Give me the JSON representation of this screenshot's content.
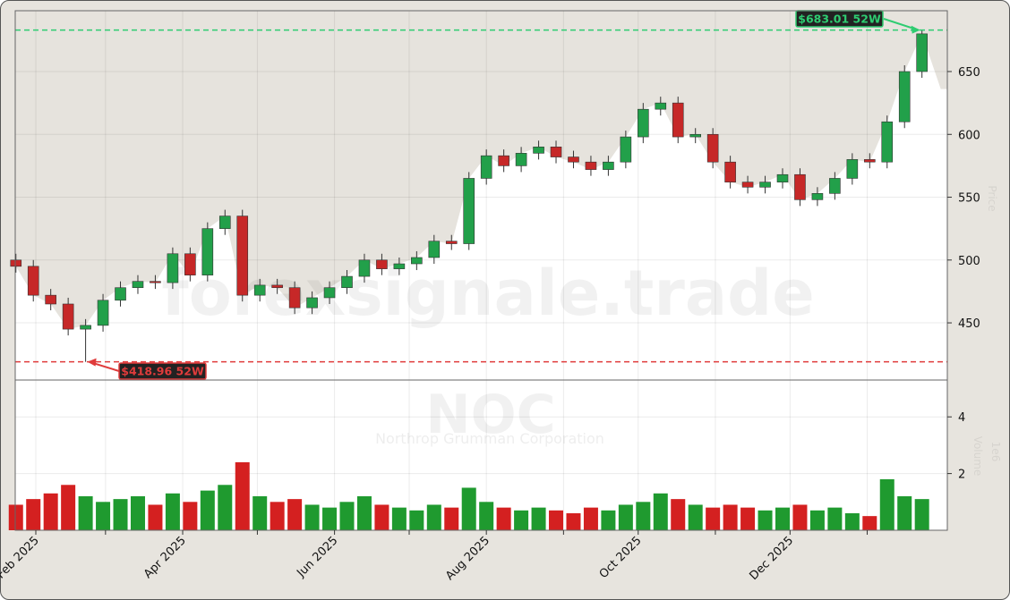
{
  "chart_data": {
    "type": "candlestick",
    "ticker": "NOC",
    "company": "Northrop Grumman Corporation",
    "watermark": "forexsignale.trade",
    "price_axis_label": "Price",
    "volume_axis_label": "Volume",
    "volume_unit": "1e6",
    "price_ylim": [
      404.5,
      698.4
    ],
    "volume_ylim": [
      0,
      5.3
    ],
    "price_ticks": [
      450,
      500,
      550,
      600,
      650
    ],
    "volume_ticks": [
      2,
      4
    ],
    "x_ticks": [
      {
        "date": "2025-02-01",
        "label": "Feb 2025"
      },
      {
        "date": "2025-03-01",
        "label": ""
      },
      {
        "date": "2025-04-01",
        "label": "Apr 2025"
      },
      {
        "date": "2025-05-01",
        "label": ""
      },
      {
        "date": "2025-06-01",
        "label": "Jun 2025"
      },
      {
        "date": "2025-07-01",
        "label": ""
      },
      {
        "date": "2025-08-01",
        "label": "Aug 2025"
      },
      {
        "date": "2025-09-01",
        "label": ""
      },
      {
        "date": "2025-10-01",
        "label": "Oct 2025"
      },
      {
        "date": "2025-11-01",
        "label": ""
      },
      {
        "date": "2025-12-01",
        "label": "Dec 2025"
      },
      {
        "date": "2026-01-01",
        "label": ""
      }
    ],
    "grid": true,
    "high_52w": {
      "value": 683.01,
      "label": "$683.01 52W",
      "color": "#2ecc71"
    },
    "low_52w": {
      "value": 418.96,
      "label": "$418.96 52W",
      "color": "#e03b3b"
    },
    "colors": {
      "up": "#22a04a",
      "down": "#c62828",
      "vol_up": "#1f9a2f",
      "vol_down": "#d42020",
      "background": "#e6e3dd"
    },
    "dates": [
      "2025-01-24",
      "2025-01-31",
      "2025-02-07",
      "2025-02-14",
      "2025-02-21",
      "2025-02-28",
      "2025-03-07",
      "2025-03-14",
      "2025-03-21",
      "2025-03-28",
      "2025-04-04",
      "2025-04-11",
      "2025-04-18",
      "2025-04-25",
      "2025-05-02",
      "2025-05-09",
      "2025-05-16",
      "2025-05-23",
      "2025-05-30",
      "2025-06-06",
      "2025-06-13",
      "2025-06-20",
      "2025-06-27",
      "2025-07-04",
      "2025-07-11",
      "2025-07-18",
      "2025-07-25",
      "2025-08-01",
      "2025-08-08",
      "2025-08-15",
      "2025-08-22",
      "2025-08-29",
      "2025-09-05",
      "2025-09-12",
      "2025-09-19",
      "2025-09-26",
      "2025-10-03",
      "2025-10-10",
      "2025-10-17",
      "2025-10-24",
      "2025-10-31",
      "2025-11-07",
      "2025-11-14",
      "2025-11-21",
      "2025-11-28",
      "2025-12-05",
      "2025-12-12",
      "2025-12-19",
      "2025-12-26",
      "2026-01-02",
      "2026-01-09",
      "2026-01-16",
      "2026-01-23"
    ],
    "close": [
      495,
      472,
      465,
      445,
      448,
      468,
      478,
      483,
      482,
      505,
      488,
      525,
      535,
      472,
      480,
      478,
      462,
      470,
      478,
      487,
      500,
      493,
      497,
      502,
      515,
      513,
      565,
      583,
      575,
      585,
      590,
      582,
      578,
      572,
      578,
      598,
      620,
      625,
      598,
      600,
      578,
      562,
      558,
      562,
      568,
      548,
      553,
      565,
      580,
      578,
      610,
      650,
      680
    ],
    "volume": [
      0.9,
      1.1,
      1.3,
      1.6,
      1.2,
      1.0,
      1.1,
      1.2,
      0.9,
      1.3,
      1.0,
      1.4,
      1.6,
      2.4,
      1.2,
      1.0,
      1.1,
      0.9,
      0.8,
      1.0,
      1.2,
      0.9,
      0.8,
      0.7,
      0.9,
      0.8,
      1.5,
      1.0,
      0.8,
      0.7,
      0.8,
      0.7,
      0.6,
      0.8,
      0.7,
      0.9,
      1.0,
      1.3,
      1.1,
      0.9,
      0.8,
      0.9,
      0.8,
      0.7,
      0.8,
      0.9,
      0.7,
      0.8,
      0.6,
      0.5,
      1.8,
      1.2,
      1.1
    ]
  }
}
